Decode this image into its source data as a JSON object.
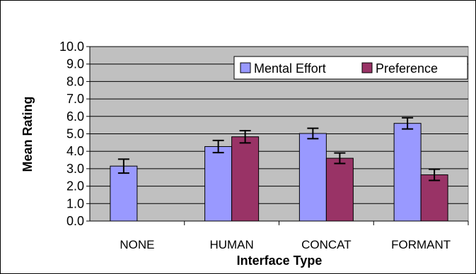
{
  "chart_data": {
    "type": "bar",
    "title": "",
    "xlabel": "Interface Type",
    "ylabel": "Mean Rating",
    "ylim": [
      0,
      10
    ],
    "ytick_step": 1,
    "yticks": [
      "0.0",
      "1.0",
      "2.0",
      "3.0",
      "4.0",
      "5.0",
      "6.0",
      "7.0",
      "8.0",
      "9.0",
      "10.0"
    ],
    "categories": [
      "NONE",
      "HUMAN",
      "CONCAT",
      "FORMANT"
    ],
    "grid": true,
    "legend_position": "top-right",
    "plot_background": "#c0c0c0",
    "series": [
      {
        "name": "Mental Effort",
        "color": "#9999ff",
        "values": [
          3.15,
          4.27,
          5.02,
          5.6
        ],
        "errors": [
          0.4,
          0.35,
          0.3,
          0.32
        ]
      },
      {
        "name": "Preference",
        "color": "#993366",
        "values": [
          0,
          4.83,
          3.6,
          2.65
        ],
        "errors": [
          0,
          0.35,
          0.3,
          0.32
        ]
      }
    ]
  }
}
